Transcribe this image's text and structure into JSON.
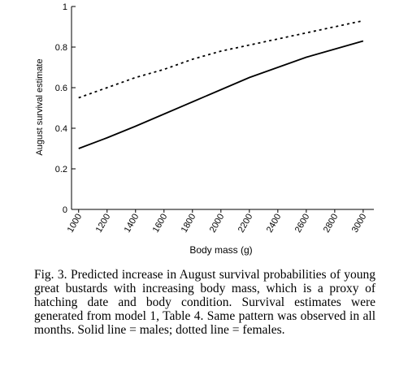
{
  "chart_data": {
    "type": "line",
    "ylabel": "August survival estimate",
    "xlabel": "Body mass (g)",
    "x": [
      1000,
      1200,
      1400,
      1600,
      1800,
      2000,
      2200,
      2400,
      2600,
      2800,
      3000
    ],
    "series": [
      {
        "color": "#000000",
        "line_style": "solid",
        "values": [
          0.3,
          0.353,
          0.41,
          0.47,
          0.53,
          0.59,
          0.65,
          0.7,
          0.75,
          0.79,
          0.83
        ]
      },
      {
        "color": "#000000",
        "line_style": "dotted",
        "values": [
          0.55,
          0.6,
          0.65,
          0.69,
          0.74,
          0.78,
          0.81,
          0.84,
          0.87,
          0.9,
          0.93
        ]
      }
    ],
    "xlim": [
      950,
      3075
    ],
    "xticks": [
      1000,
      1200,
      1400,
      1600,
      1800,
      2000,
      2200,
      2400,
      2600,
      2800,
      3000
    ],
    "ylim": [
      0,
      1
    ],
    "yticks": [
      0,
      0.2,
      0.4,
      0.6,
      0.8,
      1
    ],
    "caption": "Fig. 3. Predicted increase in August survival probabilities of young great bustards with increasing body mass, which is a proxy of hatching date and body condition. Survival estimates were generated from model 1, Table 4. Same pattern was observed in all months. Solid line = males; dotted line = females."
  }
}
